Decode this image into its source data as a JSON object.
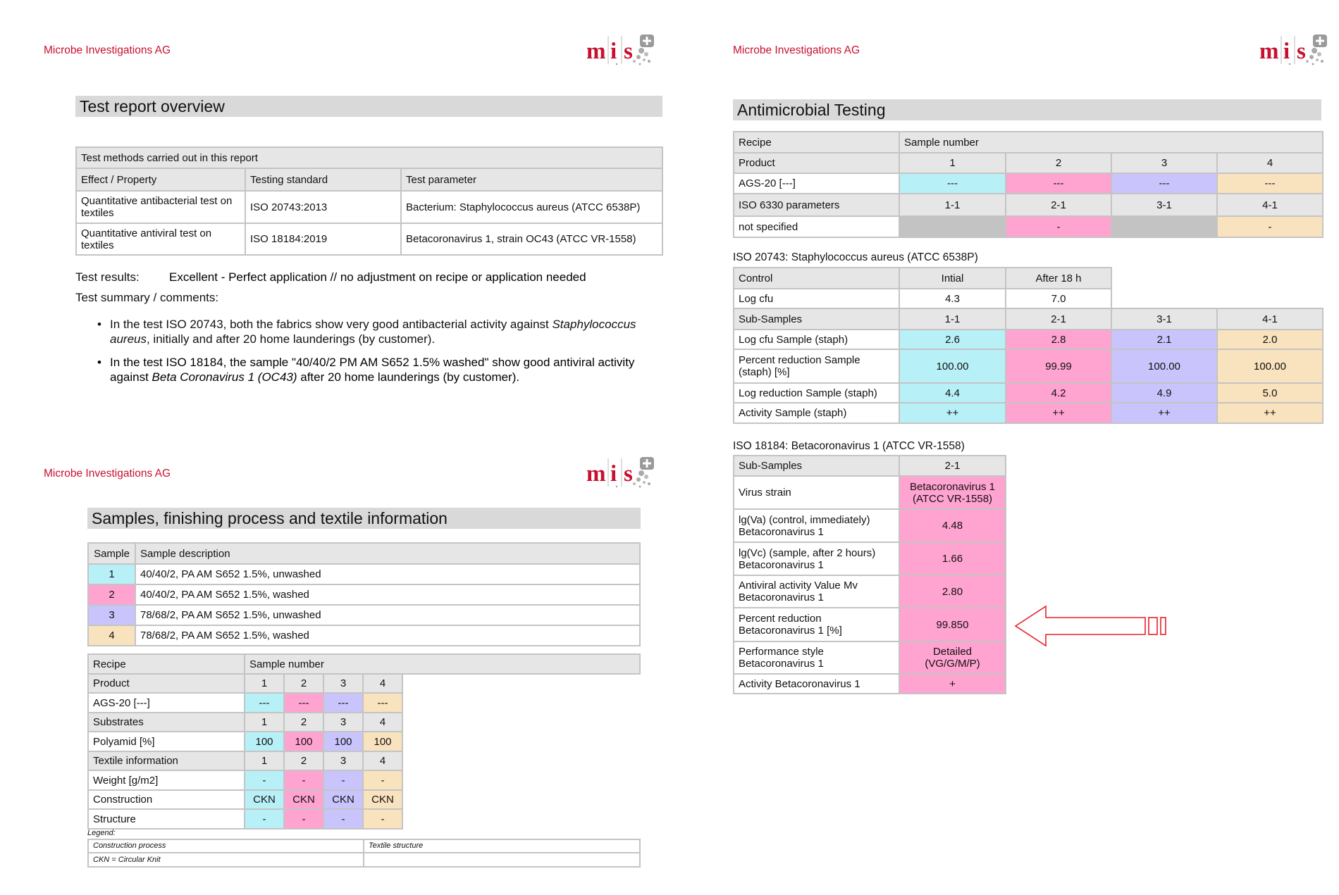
{
  "company": "Microbe Investigations AG",
  "logo": {
    "letters": [
      "m",
      "i",
      "s"
    ],
    "brand_color": "#c8102e"
  },
  "colors": {
    "cyan": "#b8f0f8",
    "pink": "#ffa3d0",
    "lav": "#c9c5fc",
    "peach": "#f9e2be"
  },
  "overview": {
    "title": "Test report overview",
    "methods_table": {
      "rows": [
        [
          {
            "t": "Test methods carried out in this report",
            "span": 3
          }
        ],
        [
          "Effect / Property",
          "Testing standard",
          "Test parameter"
        ],
        [
          "Quantitative antibacterial test on textiles",
          "ISO 20743:2013",
          "Bacterium: Staphylococcus aureus (ATCC 6538P)"
        ],
        [
          "Quantitative antiviral test on textiles",
          "ISO 18184:2019",
          "Betacoronavirus 1, strain OC43 (ATCC VR-1558)"
        ]
      ]
    },
    "results_label": "Test results:",
    "results_value": "Excellent - Perfect application // no adjustment on recipe or application needed",
    "summary_label": "Test summary / comments:",
    "bullets": [
      [
        "In the test ISO 20743, both the fabrics show very good antibacterial activity against ",
        "Staphylococcus aureus",
        ", initially and after 20 home launderings (by customer)."
      ],
      [
        "In the test ISO 18184, the sample \"40/40/2 PM AM S652 1.5% washed\" show good antiviral activity against ",
        "Beta Coronavirus 1 (OC43)",
        " after 20 home launderings (by customer)."
      ]
    ]
  },
  "samples": {
    "title": "Samples, finishing process and textile information",
    "samples_table": {
      "rows": [
        [
          "Sample",
          "Sample description"
        ],
        [
          {
            "t": "1",
            "bg": "cyan"
          },
          "40/40/2, PA AM S652 1.5%, unwashed"
        ],
        [
          {
            "t": "2",
            "bg": "pink"
          },
          "40/40/2, PA AM S652 1.5%, washed"
        ],
        [
          {
            "t": "3",
            "bg": "lav"
          },
          "78/68/2, PA AM S652 1.5%, unwashed"
        ],
        [
          {
            "t": "4",
            "bg": "peach"
          },
          "78/68/2, PA AM S652 1.5%, washed"
        ]
      ]
    },
    "recipe_table": {
      "rows": [
        [
          "Recipe",
          {
            "t": "Sample number",
            "span": 5
          }
        ],
        [
          "Product",
          "1",
          "2",
          "3",
          "4"
        ],
        [
          "AGS-20 [---]",
          {
            "t": "---",
            "bg": "cyan"
          },
          {
            "t": "---",
            "bg": "pink"
          },
          {
            "t": "---",
            "bg": "lav"
          },
          {
            "t": "---",
            "bg": "peach"
          }
        ],
        [
          "Substrates",
          "1",
          "2",
          "3",
          "4"
        ],
        [
          "Polyamid [%]",
          {
            "t": "100",
            "bg": "cyan"
          },
          {
            "t": "100",
            "bg": "pink"
          },
          {
            "t": "100",
            "bg": "lav"
          },
          {
            "t": "100",
            "bg": "peach"
          }
        ],
        [
          "Textile information",
          "1",
          "2",
          "3",
          "4"
        ],
        [
          "Weight [g/m2]",
          {
            "t": "-",
            "bg": "cyan"
          },
          {
            "t": "-",
            "bg": "pink"
          },
          {
            "t": "-",
            "bg": "lav"
          },
          {
            "t": "-",
            "bg": "peach"
          }
        ],
        [
          "Construction",
          {
            "t": "CKN",
            "bg": "cyan"
          },
          {
            "t": "CKN",
            "bg": "pink"
          },
          {
            "t": "CKN",
            "bg": "lav"
          },
          {
            "t": "CKN",
            "bg": "peach"
          }
        ],
        [
          "Structure",
          {
            "t": "-",
            "bg": "cyan"
          },
          {
            "t": "-",
            "bg": "pink"
          },
          {
            "t": "-",
            "bg": "lav"
          },
          {
            "t": "-",
            "bg": "peach"
          }
        ]
      ]
    },
    "legend_label": "Legend:",
    "legend_table": {
      "rows": [
        [
          "Construction process",
          "Textile structure"
        ],
        [
          "CKN = Circular Knit",
          ""
        ]
      ]
    }
  },
  "antimicrobial": {
    "title": "Antimicrobial Testing",
    "recipe_table": {
      "rows": [
        [
          "Recipe",
          {
            "t": "Sample number",
            "span": 4
          }
        ],
        [
          "Product",
          "1",
          "2",
          "3",
          "4"
        ],
        [
          "AGS-20 [---]",
          {
            "t": "---",
            "bg": "cyan"
          },
          {
            "t": "---",
            "bg": "pink"
          },
          {
            "t": "---",
            "bg": "lav"
          },
          {
            "t": "---",
            "bg": "peach"
          }
        ],
        [
          "ISO 6330 parameters",
          "1-1",
          "2-1",
          "3-1",
          "4-1"
        ],
        [
          "not specified",
          {
            "t": "",
            "bg": "gray"
          },
          {
            "t": "-",
            "bg": "pink"
          },
          {
            "t": "",
            "bg": "gray"
          },
          {
            "t": "-",
            "bg": "peach"
          }
        ]
      ]
    },
    "iso20743_label": "ISO 20743: Staphylococcus aureus (ATCC 6538P)",
    "iso20743_table": {
      "rows": [
        [
          "Control",
          "Intial",
          "After 18 h"
        ],
        [
          "Log cfu",
          "4.3",
          "7.0"
        ],
        [
          "Sub-Samples",
          "1-1",
          "2-1",
          "3-1",
          "4-1"
        ],
        [
          "Log cfu Sample (staph)",
          {
            "t": "2.6",
            "bg": "cyan"
          },
          {
            "t": "2.8",
            "bg": "pink"
          },
          {
            "t": "2.1",
            "bg": "lav"
          },
          {
            "t": "2.0",
            "bg": "peach"
          }
        ],
        [
          "Percent reduction Sample (staph) [%]",
          {
            "t": "100.00",
            "bg": "cyan"
          },
          {
            "t": "99.99",
            "bg": "pink"
          },
          {
            "t": "100.00",
            "bg": "lav"
          },
          {
            "t": "100.00",
            "bg": "peach"
          }
        ],
        [
          "Log reduction Sample (staph)",
          {
            "t": "4.4",
            "bg": "cyan"
          },
          {
            "t": "4.2",
            "bg": "pink"
          },
          {
            "t": "4.9",
            "bg": "lav"
          },
          {
            "t": "5.0",
            "bg": "peach"
          }
        ],
        [
          "Activity Sample (staph)",
          {
            "t": "++",
            "bg": "cyan"
          },
          {
            "t": "++",
            "bg": "pink"
          },
          {
            "t": "++",
            "bg": "lav"
          },
          {
            "t": "++",
            "bg": "peach"
          }
        ]
      ]
    },
    "iso18184_label": "ISO 18184: Betacoronavirus 1 (ATCC VR-1558)",
    "iso18184_table": {
      "rows": [
        [
          "Sub-Samples",
          "2-1"
        ],
        [
          "Virus strain",
          {
            "t": "Betacoronavirus 1 (ATCC VR-1558)",
            "bg": "pink"
          }
        ],
        [
          "lg(Va) (control, immediately) Betacoronavirus 1",
          {
            "t": "4.48",
            "bg": "pink"
          }
        ],
        [
          "lg(Vc) (sample, after 2 hours) Betacoronavirus 1",
          {
            "t": "1.66",
            "bg": "pink"
          }
        ],
        [
          "Antiviral activity Value Mv Betacoronavirus 1",
          {
            "t": "2.80",
            "bg": "pink"
          }
        ],
        [
          "Percent reduction Betacoronavirus 1 [%]",
          {
            "t": "99.850",
            "bg": "pink"
          }
        ],
        [
          "Performance style Betacoronavirus 1",
          {
            "t": "Detailed (VG/G/M/P)",
            "bg": "pink"
          }
        ],
        [
          "Activity Betacoronavirus 1",
          {
            "t": "+",
            "bg": "pink"
          }
        ]
      ]
    },
    "arrow_color": "#e8202a"
  }
}
